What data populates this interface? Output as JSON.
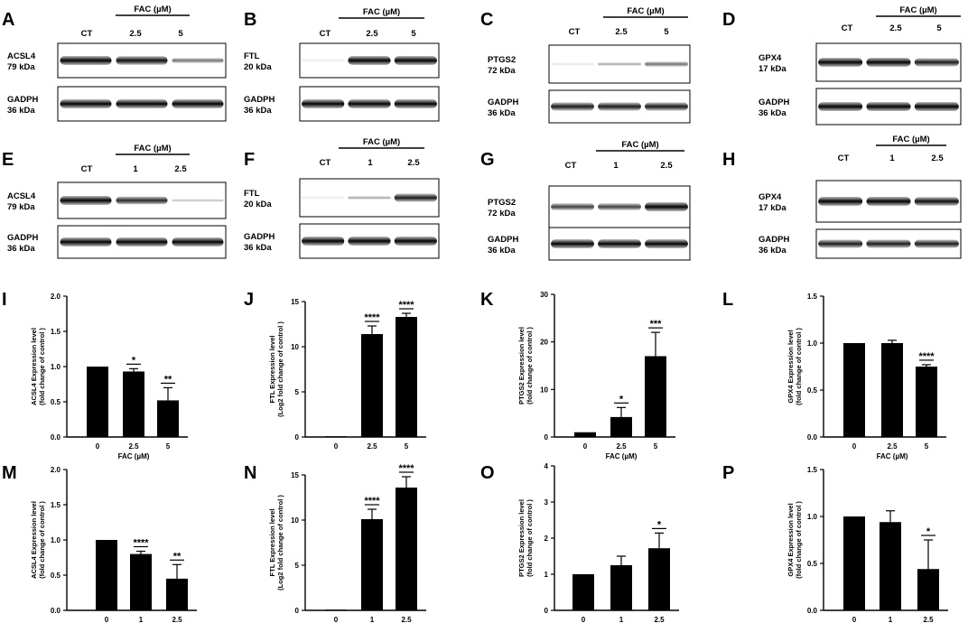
{
  "blot_panels": [
    {
      "letter": "A",
      "group": "FAC (µM)",
      "lanes": [
        "CT",
        "2.5",
        "5"
      ],
      "rows": [
        {
          "name": "ACSL4",
          "size": "79 kDa",
          "bands": [
            1,
            0.95,
            0.55
          ]
        },
        {
          "name": "GADPH",
          "size": "36 kDa",
          "bands": [
            1,
            1,
            1
          ]
        }
      ]
    },
    {
      "letter": "B",
      "group": "FAC (µM)",
      "lanes": [
        "CT",
        "2.5",
        "5"
      ],
      "rows": [
        {
          "name": "FTL",
          "size": "20 kDa",
          "bands": [
            0.05,
            1,
            1
          ]
        },
        {
          "name": "GADPH",
          "size": "36 kDa",
          "bands": [
            1,
            1,
            1
          ]
        }
      ]
    },
    {
      "letter": "C",
      "group": "FAC (µM)",
      "lanes": [
        "CT",
        "2.5",
        "5"
      ],
      "rows": [
        {
          "name": "PTGS2",
          "size": "72 kDa",
          "bands": [
            0.1,
            0.35,
            0.55
          ]
        },
        {
          "name": "GADPH",
          "size": "36 kDa",
          "bands": [
            0.9,
            0.9,
            0.9
          ]
        }
      ]
    },
    {
      "letter": "D",
      "group": "FAC (µM)",
      "lanes": [
        "CT",
        "2.5",
        "5"
      ],
      "rows": [
        {
          "name": "GPX4",
          "size": "17 kDa",
          "bands": [
            1,
            1,
            0.9
          ]
        },
        {
          "name": "GADPH",
          "size": "36 kDa",
          "bands": [
            1,
            1,
            1
          ]
        }
      ]
    },
    {
      "letter": "E",
      "group": "FAC (µM)",
      "lanes": [
        "CT",
        "1",
        "2.5"
      ],
      "rows": [
        {
          "name": "ACSL4",
          "size": "79 kDa",
          "bands": [
            1,
            0.85,
            0.25
          ]
        },
        {
          "name": "GADPH",
          "size": "36 kDa",
          "bands": [
            1,
            1,
            1
          ]
        }
      ]
    },
    {
      "letter": "F",
      "group": "FAC (µM)",
      "lanes": [
        "CT",
        "1",
        "2.5"
      ],
      "rows": [
        {
          "name": "FTL",
          "size": "20 kDa",
          "bands": [
            0.05,
            0.35,
            0.9
          ]
        },
        {
          "name": "GADPH",
          "size": "36 kDa",
          "bands": [
            1,
            1,
            1
          ]
        }
      ]
    },
    {
      "letter": "G",
      "group": "FAC (µM)",
      "lanes": [
        "CT",
        "1",
        "2.5"
      ],
      "rows": [
        {
          "name": "PTGS2",
          "size": "72 kDa",
          "bands": [
            0.75,
            0.75,
            1
          ]
        },
        {
          "name": "GADPH",
          "size": "36 kDa",
          "bands": [
            1,
            1,
            1
          ]
        }
      ]
    },
    {
      "letter": "H",
      "group": "FAC (µM)",
      "lanes": [
        "CT",
        "1",
        "2.5"
      ],
      "rows": [
        {
          "name": "GPX4",
          "size": "17 kDa",
          "bands": [
            1,
            1,
            0.95
          ]
        },
        {
          "name": "GADPH",
          "size": "36 kDa",
          "bands": [
            0.9,
            0.9,
            0.9
          ]
        }
      ]
    }
  ],
  "chart_data": [
    {
      "type": "bar",
      "panel": "I",
      "categories": [
        "0",
        "2.5",
        "5"
      ],
      "values": [
        1,
        0.93,
        0.52
      ],
      "errors": [
        0,
        0.04,
        0.18
      ],
      "significance": [
        "",
        "*",
        "**"
      ],
      "xlabel": "FAC (µM)",
      "ylabel": [
        "ACSL4 Expression level",
        "(fold change of control )"
      ],
      "ylim": [
        0,
        2
      ],
      "yticks": [
        "0.0",
        "0.5",
        "1.0",
        "1.5",
        "2.0"
      ]
    },
    {
      "type": "bar",
      "panel": "J",
      "categories": [
        "0",
        "2.5",
        "5"
      ],
      "values": [
        0,
        11.4,
        13.3
      ],
      "errors": [
        0,
        0.9,
        0.4
      ],
      "significance": [
        "",
        "****",
        "****"
      ],
      "xlabel": "",
      "ylabel": [
        "FTL Expression level",
        "(Log2 fold change of control )"
      ],
      "ylim": [
        0,
        15
      ],
      "yticks": [
        "0",
        "5",
        "10",
        "15"
      ]
    },
    {
      "type": "bar",
      "panel": "K",
      "categories": [
        "0",
        "2.5",
        "5"
      ],
      "values": [
        1,
        4.2,
        17
      ],
      "errors": [
        0,
        2,
        5
      ],
      "significance": [
        "",
        "*",
        "***"
      ],
      "xlabel": "FAC (µM)",
      "ylabel": [
        "PTGS2 Expression level",
        "(fold change of control )"
      ],
      "ylim": [
        0,
        30
      ],
      "yticks": [
        "0",
        "10",
        "20",
        "30"
      ]
    },
    {
      "type": "bar",
      "panel": "L",
      "categories": [
        "0",
        "2.5",
        "5"
      ],
      "values": [
        1,
        1,
        0.75
      ],
      "errors": [
        0,
        0.03,
        0.02
      ],
      "significance": [
        "",
        "",
        "****"
      ],
      "xlabel": "FAC (µM)",
      "ylabel": [
        "GPX4 Expression level",
        "(fold change of control )"
      ],
      "ylim": [
        0,
        1.5
      ],
      "yticks": [
        "0.0",
        "0.5",
        "1.0",
        "1.5"
      ]
    },
    {
      "type": "bar",
      "panel": "M",
      "categories": [
        "0",
        "1",
        "2.5"
      ],
      "values": [
        1,
        0.8,
        0.45
      ],
      "errors": [
        0,
        0.04,
        0.2
      ],
      "significance": [
        "",
        "****",
        "**"
      ],
      "xlabel": "",
      "ylabel": [
        "ACSL4 Expression level",
        "(fold change of control )"
      ],
      "ylim": [
        0,
        2
      ],
      "yticks": [
        "0.0",
        "0.5",
        "1.0",
        "1.5",
        "2.0"
      ]
    },
    {
      "type": "bar",
      "panel": "N",
      "categories": [
        "0",
        "1",
        "2.5"
      ],
      "values": [
        0,
        10.1,
        13.6
      ],
      "errors": [
        0,
        1.1,
        1.2
      ],
      "significance": [
        "",
        "****",
        "****"
      ],
      "xlabel": "",
      "ylabel": [
        "FTL Expression level",
        "(Log2 fold change of control )"
      ],
      "ylim": [
        0,
        15
      ],
      "yticks": [
        "0",
        "5",
        "10",
        "15"
      ]
    },
    {
      "type": "bar",
      "panel": "O",
      "categories": [
        "0",
        "1",
        "2.5"
      ],
      "values": [
        1,
        1.25,
        1.72
      ],
      "errors": [
        0,
        0.25,
        0.42
      ],
      "significance": [
        "",
        "",
        "*"
      ],
      "xlabel": "",
      "ylabel": [
        "PTGS2 Expression level",
        "(fold change of control )"
      ],
      "ylim": [
        0,
        4
      ],
      "yticks": [
        "0",
        "1",
        "2",
        "3",
        "4"
      ]
    },
    {
      "type": "bar",
      "panel": "P",
      "categories": [
        "0",
        "1",
        "2.5"
      ],
      "values": [
        1,
        0.94,
        0.44
      ],
      "errors": [
        0,
        0.12,
        0.31
      ],
      "significance": [
        "",
        "",
        "*"
      ],
      "xlabel": "",
      "ylabel": [
        "GPX4 Expression level",
        "(fold change of control )"
      ],
      "ylim": [
        0,
        1.5
      ],
      "yticks": [
        "0.0",
        "0.5",
        "1.0",
        "1.5"
      ]
    }
  ]
}
